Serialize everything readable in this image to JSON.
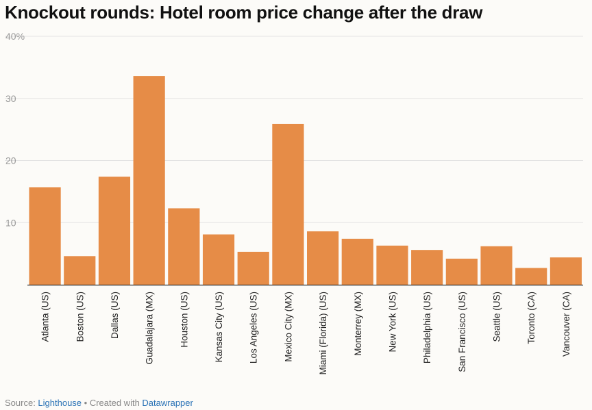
{
  "chart_data": {
    "type": "bar",
    "title": "Knockout rounds: Hotel room price change after the draw",
    "categories": [
      "Atlanta (US)",
      "Boston (US)",
      "Dallas (US)",
      "Guadalajara (MX)",
      "Houston (US)",
      "Kansas City (US)",
      "Los Angeles (US)",
      "Mexico City (MX)",
      "Miami (Florida) (US)",
      "Monterrey (MX)",
      "New York (US)",
      "Philadelphia (US)",
      "San Francisco (US)",
      "Seattle (US)",
      "Toronto (CA)",
      "Vancouver (CA)"
    ],
    "values": [
      15.7,
      4.6,
      17.4,
      33.6,
      12.3,
      8.1,
      5.3,
      25.9,
      8.6,
      7.4,
      6.3,
      5.6,
      4.2,
      6.2,
      2.7,
      4.4
    ],
    "ylim": [
      0,
      40
    ],
    "yticks": [
      0,
      10,
      20,
      30,
      40
    ],
    "ytick_labels": [
      "",
      "10",
      "20",
      "30",
      "40%"
    ],
    "xlabel": "",
    "ylabel": "",
    "bar_color": "#e68c47",
    "grid": true
  },
  "footer": {
    "source_prefix": "Source: ",
    "source_name": "Lighthouse",
    "separator": " • Created with ",
    "tool_name": "Datawrapper"
  }
}
